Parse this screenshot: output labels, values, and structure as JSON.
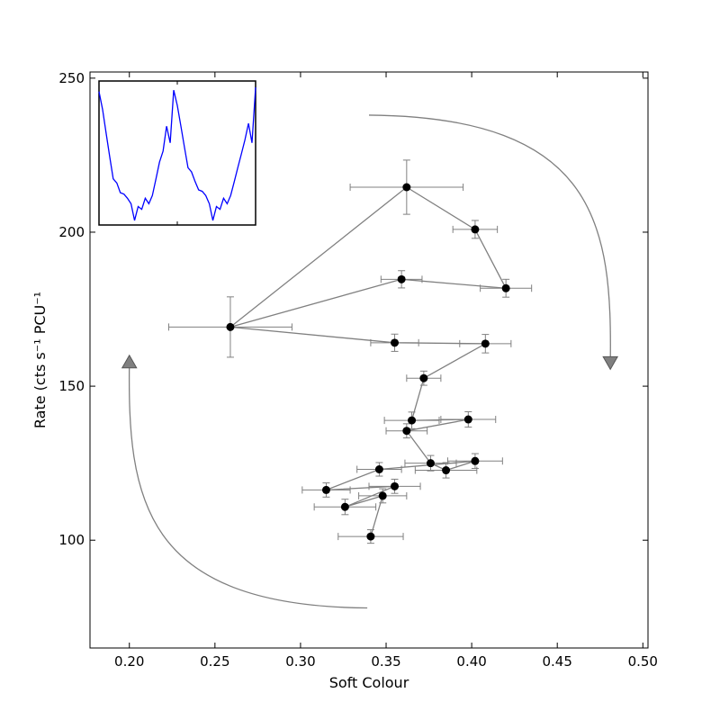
{
  "chart_data": {
    "type": "scatter",
    "xlabel": "Soft Colour",
    "ylabel": "Rate (cts s⁻¹ PCU⁻¹",
    "xlim": [
      0.177,
      0.503
    ],
    "ylim": [
      65,
      252
    ],
    "x_ticks": [
      0.2,
      0.25,
      0.3,
      0.35,
      0.4,
      0.45,
      0.5
    ],
    "x_tick_labels": [
      "0.20",
      "0.25",
      "0.30",
      "0.35",
      "0.40",
      "0.45",
      "0.50"
    ],
    "y_ticks": [
      100,
      150,
      200,
      250
    ],
    "y_tick_labels": [
      "100",
      "150",
      "200",
      "250"
    ],
    "grid": false,
    "legend": "none",
    "colors": {
      "marker": "#000000",
      "line": "#808080",
      "errorbar": "#808080",
      "arrow": "#808080",
      "inset_line": "#0000ff"
    },
    "points": [
      {
        "x": 0.341,
        "y": 101.2,
        "xerr": 0.019,
        "yerr": 2.2
      },
      {
        "x": 0.348,
        "y": 114.4,
        "xerr": 0.014,
        "yerr": 2.3
      },
      {
        "x": 0.326,
        "y": 110.8,
        "xerr": 0.018,
        "yerr": 2.5
      },
      {
        "x": 0.355,
        "y": 117.5,
        "xerr": 0.015,
        "yerr": 2.3
      },
      {
        "x": 0.315,
        "y": 116.3,
        "xerr": 0.014,
        "yerr": 2.3
      },
      {
        "x": 0.346,
        "y": 123.0,
        "xerr": 0.013,
        "yerr": 2.2
      },
      {
        "x": 0.402,
        "y": 125.7,
        "xerr": 0.016,
        "yerr": 2.4
      },
      {
        "x": 0.385,
        "y": 122.7,
        "xerr": 0.018,
        "yerr": 2.5
      },
      {
        "x": 0.376,
        "y": 125.0,
        "xerr": 0.015,
        "yerr": 2.5
      },
      {
        "x": 0.362,
        "y": 135.5,
        "xerr": 0.012,
        "yerr": 2.3
      },
      {
        "x": 0.398,
        "y": 139.2,
        "xerr": 0.016,
        "yerr": 2.5
      },
      {
        "x": 0.365,
        "y": 138.9,
        "xerr": 0.016,
        "yerr": 2.7
      },
      {
        "x": 0.372,
        "y": 152.6,
        "xerr": 0.01,
        "yerr": 2.3
      },
      {
        "x": 0.408,
        "y": 163.8,
        "xerr": 0.015,
        "yerr": 3.0
      },
      {
        "x": 0.355,
        "y": 164.1,
        "xerr": 0.014,
        "yerr": 2.8
      },
      {
        "x": 0.259,
        "y": 169.2,
        "xerr": 0.036,
        "yerr": 9.8
      },
      {
        "x": 0.359,
        "y": 184.7,
        "xerr": 0.012,
        "yerr": 2.8
      },
      {
        "x": 0.42,
        "y": 181.8,
        "xerr": 0.015,
        "yerr": 2.9
      },
      {
        "x": 0.402,
        "y": 200.9,
        "xerr": 0.013,
        "yerr": 2.9
      },
      {
        "x": 0.362,
        "y": 214.6,
        "xerr": 0.033,
        "yerr": 8.8
      }
    ],
    "path_order": [
      0,
      1,
      2,
      3,
      4,
      5,
      6,
      7,
      8,
      9,
      10,
      11,
      12,
      13,
      14,
      15,
      16,
      17,
      18,
      19,
      15
    ],
    "arrows": [
      {
        "direction": "clockwise",
        "from": [
          0.34,
          238.0
        ],
        "to": [
          0.481,
          157.5
        ],
        "head": "triangle-down"
      },
      {
        "direction": "clockwise",
        "from": [
          0.339,
          78.0
        ],
        "to": [
          0.2,
          158.0
        ],
        "head": "triangle-up"
      }
    ],
    "inset": {
      "type": "line",
      "position": "top-left",
      "x": [
        0,
        1,
        2,
        3,
        4,
        5,
        6,
        7,
        8,
        9,
        10,
        11,
        12,
        13,
        14,
        15,
        16,
        17,
        18,
        19,
        20,
        21,
        22,
        23,
        24,
        25,
        26,
        27,
        28,
        29,
        30,
        31,
        32,
        33,
        34,
        35,
        36,
        37,
        38,
        39,
        40,
        41,
        42,
        43,
        44
      ],
      "values": [
        0.95,
        0.82,
        0.65,
        0.48,
        0.32,
        0.29,
        0.22,
        0.21,
        0.18,
        0.14,
        0.02,
        0.12,
        0.1,
        0.18,
        0.14,
        0.2,
        0.32,
        0.44,
        0.52,
        0.7,
        0.58,
        0.96,
        0.85,
        0.7,
        0.55,
        0.4,
        0.37,
        0.3,
        0.24,
        0.23,
        0.2,
        0.14,
        0.02,
        0.12,
        0.1,
        0.18,
        0.14,
        0.2,
        0.3,
        0.4,
        0.5,
        0.6,
        0.72,
        0.58,
        0.98
      ]
    }
  }
}
